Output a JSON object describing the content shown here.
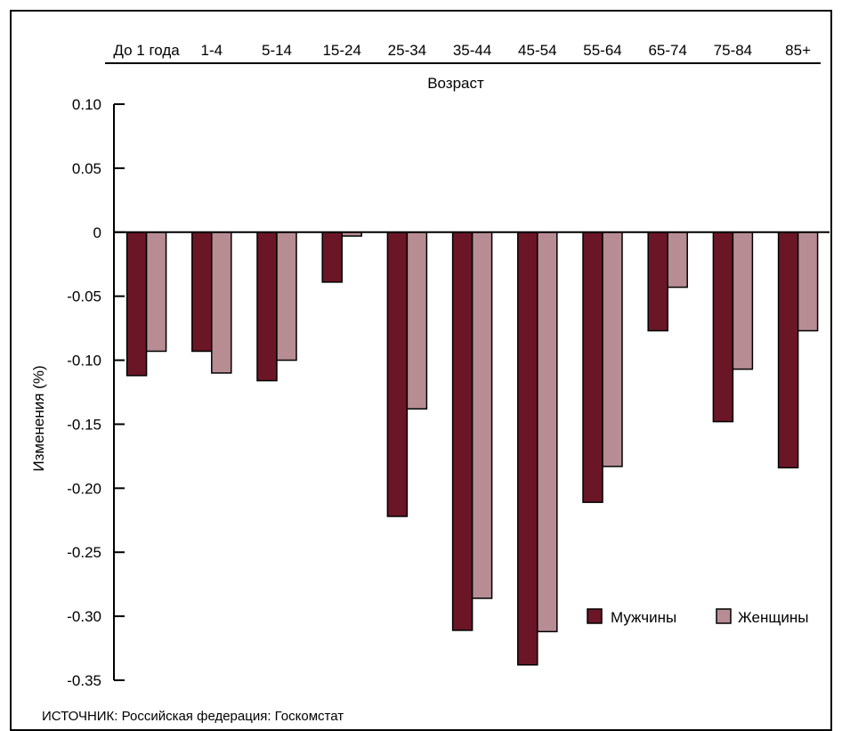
{
  "chart_data": {
    "type": "bar",
    "categories": [
      "До 1 года",
      "1-4",
      "5-14",
      "15-24",
      "25-34",
      "35-44",
      "45-54",
      "55-64",
      "65-74",
      "75-84",
      "85+"
    ],
    "series": [
      {
        "name": "Мужчины",
        "color": "#6b1626",
        "values": [
          -0.112,
          -0.093,
          -0.116,
          -0.039,
          -0.222,
          -0.311,
          -0.338,
          -0.211,
          -0.077,
          -0.148,
          -0.184
        ]
      },
      {
        "name": "Женщины",
        "color": "#b78d93",
        "values": [
          -0.093,
          -0.11,
          -0.1,
          -0.003,
          -0.138,
          -0.286,
          -0.312,
          -0.183,
          -0.043,
          -0.107,
          -0.077
        ]
      }
    ],
    "xlabel": "Возраст",
    "ylabel": "Изменения (%)",
    "ylim": [
      -0.35,
      0.1
    ],
    "yticks": [
      "0.10",
      "0.05",
      "0",
      "-0.05",
      "-0.10",
      "-0.15",
      "-0.20",
      "-0.25",
      "-0.30",
      "-0.35"
    ],
    "x_axis_position": "top",
    "grid": false,
    "legend": "bottom-right"
  },
  "source_note": "ИСТОЧНИК: Российская федерация: Госкомстат"
}
